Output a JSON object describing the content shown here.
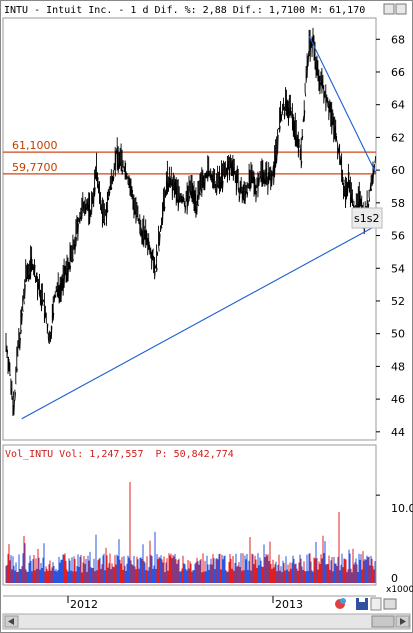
{
  "header": {
    "symbol": "INTU",
    "text": "INTU - Intuit Inc. - 1 d Dif. %: 2,88 Dif.: 1,7100 M: 61,170"
  },
  "volume_header": {
    "prefix": "Vol_INTU Vol: 1,247,557",
    "p_part": "P: 50,842,774"
  },
  "volume_axis": {
    "tick": "10.0",
    "zero": "0",
    "multiplier": "x1000"
  },
  "x_axis": {
    "labels": [
      "2012",
      "2013"
    ]
  },
  "hlines": [
    {
      "label": "61,1000",
      "value": 61.1
    },
    {
      "label": "59,7700",
      "value": 59.77
    }
  ],
  "annotation": {
    "label": "s1s2"
  },
  "colors": {
    "price": "#000000",
    "trendline": "#1a5fd0",
    "hline": "#d0471a",
    "vol_up": "#2a55e0",
    "vol_down": "#e02020"
  },
  "icons": [
    "palette-icon",
    "save-icon",
    "scroll-left-icon",
    "scroll-right-icon"
  ],
  "chart_data": {
    "type": "line",
    "y_ticks": [
      44,
      46,
      48,
      50,
      52,
      54,
      56,
      58,
      60,
      62,
      64,
      66,
      68
    ],
    "ylim": [
      43.5,
      69.3
    ],
    "series": [
      {
        "values": [
          [
            0,
            49.5
          ],
          [
            4,
            47.5
          ],
          [
            8,
            45.5
          ],
          [
            12,
            49
          ],
          [
            16,
            51
          ],
          [
            20,
            53.5
          ],
          [
            26,
            54.5
          ],
          [
            32,
            53
          ],
          [
            38,
            52
          ],
          [
            44,
            49.5
          ],
          [
            50,
            52.5
          ],
          [
            56,
            53
          ],
          [
            62,
            54
          ],
          [
            68,
            55
          ],
          [
            74,
            57
          ],
          [
            80,
            58
          ],
          [
            86,
            57.5
          ],
          [
            92,
            60
          ],
          [
            96,
            58
          ],
          [
            100,
            57
          ],
          [
            106,
            59
          ],
          [
            112,
            61
          ],
          [
            118,
            60.5
          ],
          [
            124,
            59.5
          ],
          [
            130,
            58
          ],
          [
            136,
            56.5
          ],
          [
            142,
            56
          ],
          [
            148,
            55
          ],
          [
            152,
            54
          ],
          [
            158,
            57
          ],
          [
            164,
            59.5
          ],
          [
            170,
            59
          ],
          [
            176,
            58.5
          ],
          [
            182,
            58
          ],
          [
            188,
            59
          ],
          [
            194,
            58
          ],
          [
            200,
            59.5
          ],
          [
            206,
            60
          ],
          [
            212,
            59
          ],
          [
            218,
            59.5
          ],
          [
            224,
            60
          ],
          [
            230,
            60.5
          ],
          [
            236,
            59
          ],
          [
            242,
            58.5
          ],
          [
            248,
            59.5
          ],
          [
            254,
            59
          ],
          [
            260,
            60
          ],
          [
            266,
            59.5
          ],
          [
            272,
            60
          ],
          [
            278,
            63
          ],
          [
            284,
            64
          ],
          [
            290,
            63.5
          ],
          [
            296,
            62
          ],
          [
            300,
            61
          ],
          [
            304,
            65
          ],
          [
            308,
            67.5
          ],
          [
            312,
            68
          ],
          [
            316,
            66
          ],
          [
            320,
            65.5
          ],
          [
            326,
            64.5
          ],
          [
            332,
            63
          ],
          [
            336,
            62
          ],
          [
            340,
            60.5
          ],
          [
            344,
            58.5
          ],
          [
            348,
            59.5
          ],
          [
            352,
            58
          ],
          [
            356,
            57.5
          ],
          [
            360,
            58.5
          ],
          [
            364,
            57
          ],
          [
            368,
            58
          ],
          [
            372,
            59.5
          ],
          [
            376,
            60.8
          ]
        ],
        "_note": "x = trading day index"
      }
    ],
    "trendlines": [
      {
        "from": [
          16,
          44.8
        ],
        "to": [
          376,
          56.6
        ]
      },
      {
        "from": [
          308,
          68.2
        ],
        "to": [
          376,
          59.8
        ]
      }
    ],
    "volume": {
      "ylim": [
        0,
        14
      ],
      "y_ticks": [
        0,
        10
      ]
    }
  }
}
